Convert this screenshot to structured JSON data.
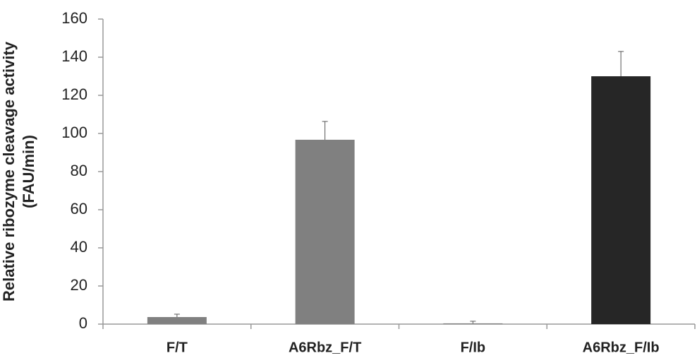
{
  "chart_data": {
    "type": "bar",
    "ylabel": [
      "Relative ribozyme cleavage activity",
      "(FAU/min)"
    ],
    "categories": [
      "F/T",
      "A6Rbz_F/T",
      "F/Ib",
      "A6Rbz_F/Ib"
    ],
    "values": [
      3.7,
      96.7,
      0.4,
      130
    ],
    "errors": [
      1.5,
      9.6,
      1.1,
      13
    ],
    "colors": [
      "#808080",
      "#808080",
      "#808080",
      "#262626"
    ],
    "ylim": [
      0,
      160
    ],
    "yticks": [
      0,
      20,
      40,
      60,
      80,
      100,
      120,
      140,
      160
    ],
    "grid": false
  }
}
